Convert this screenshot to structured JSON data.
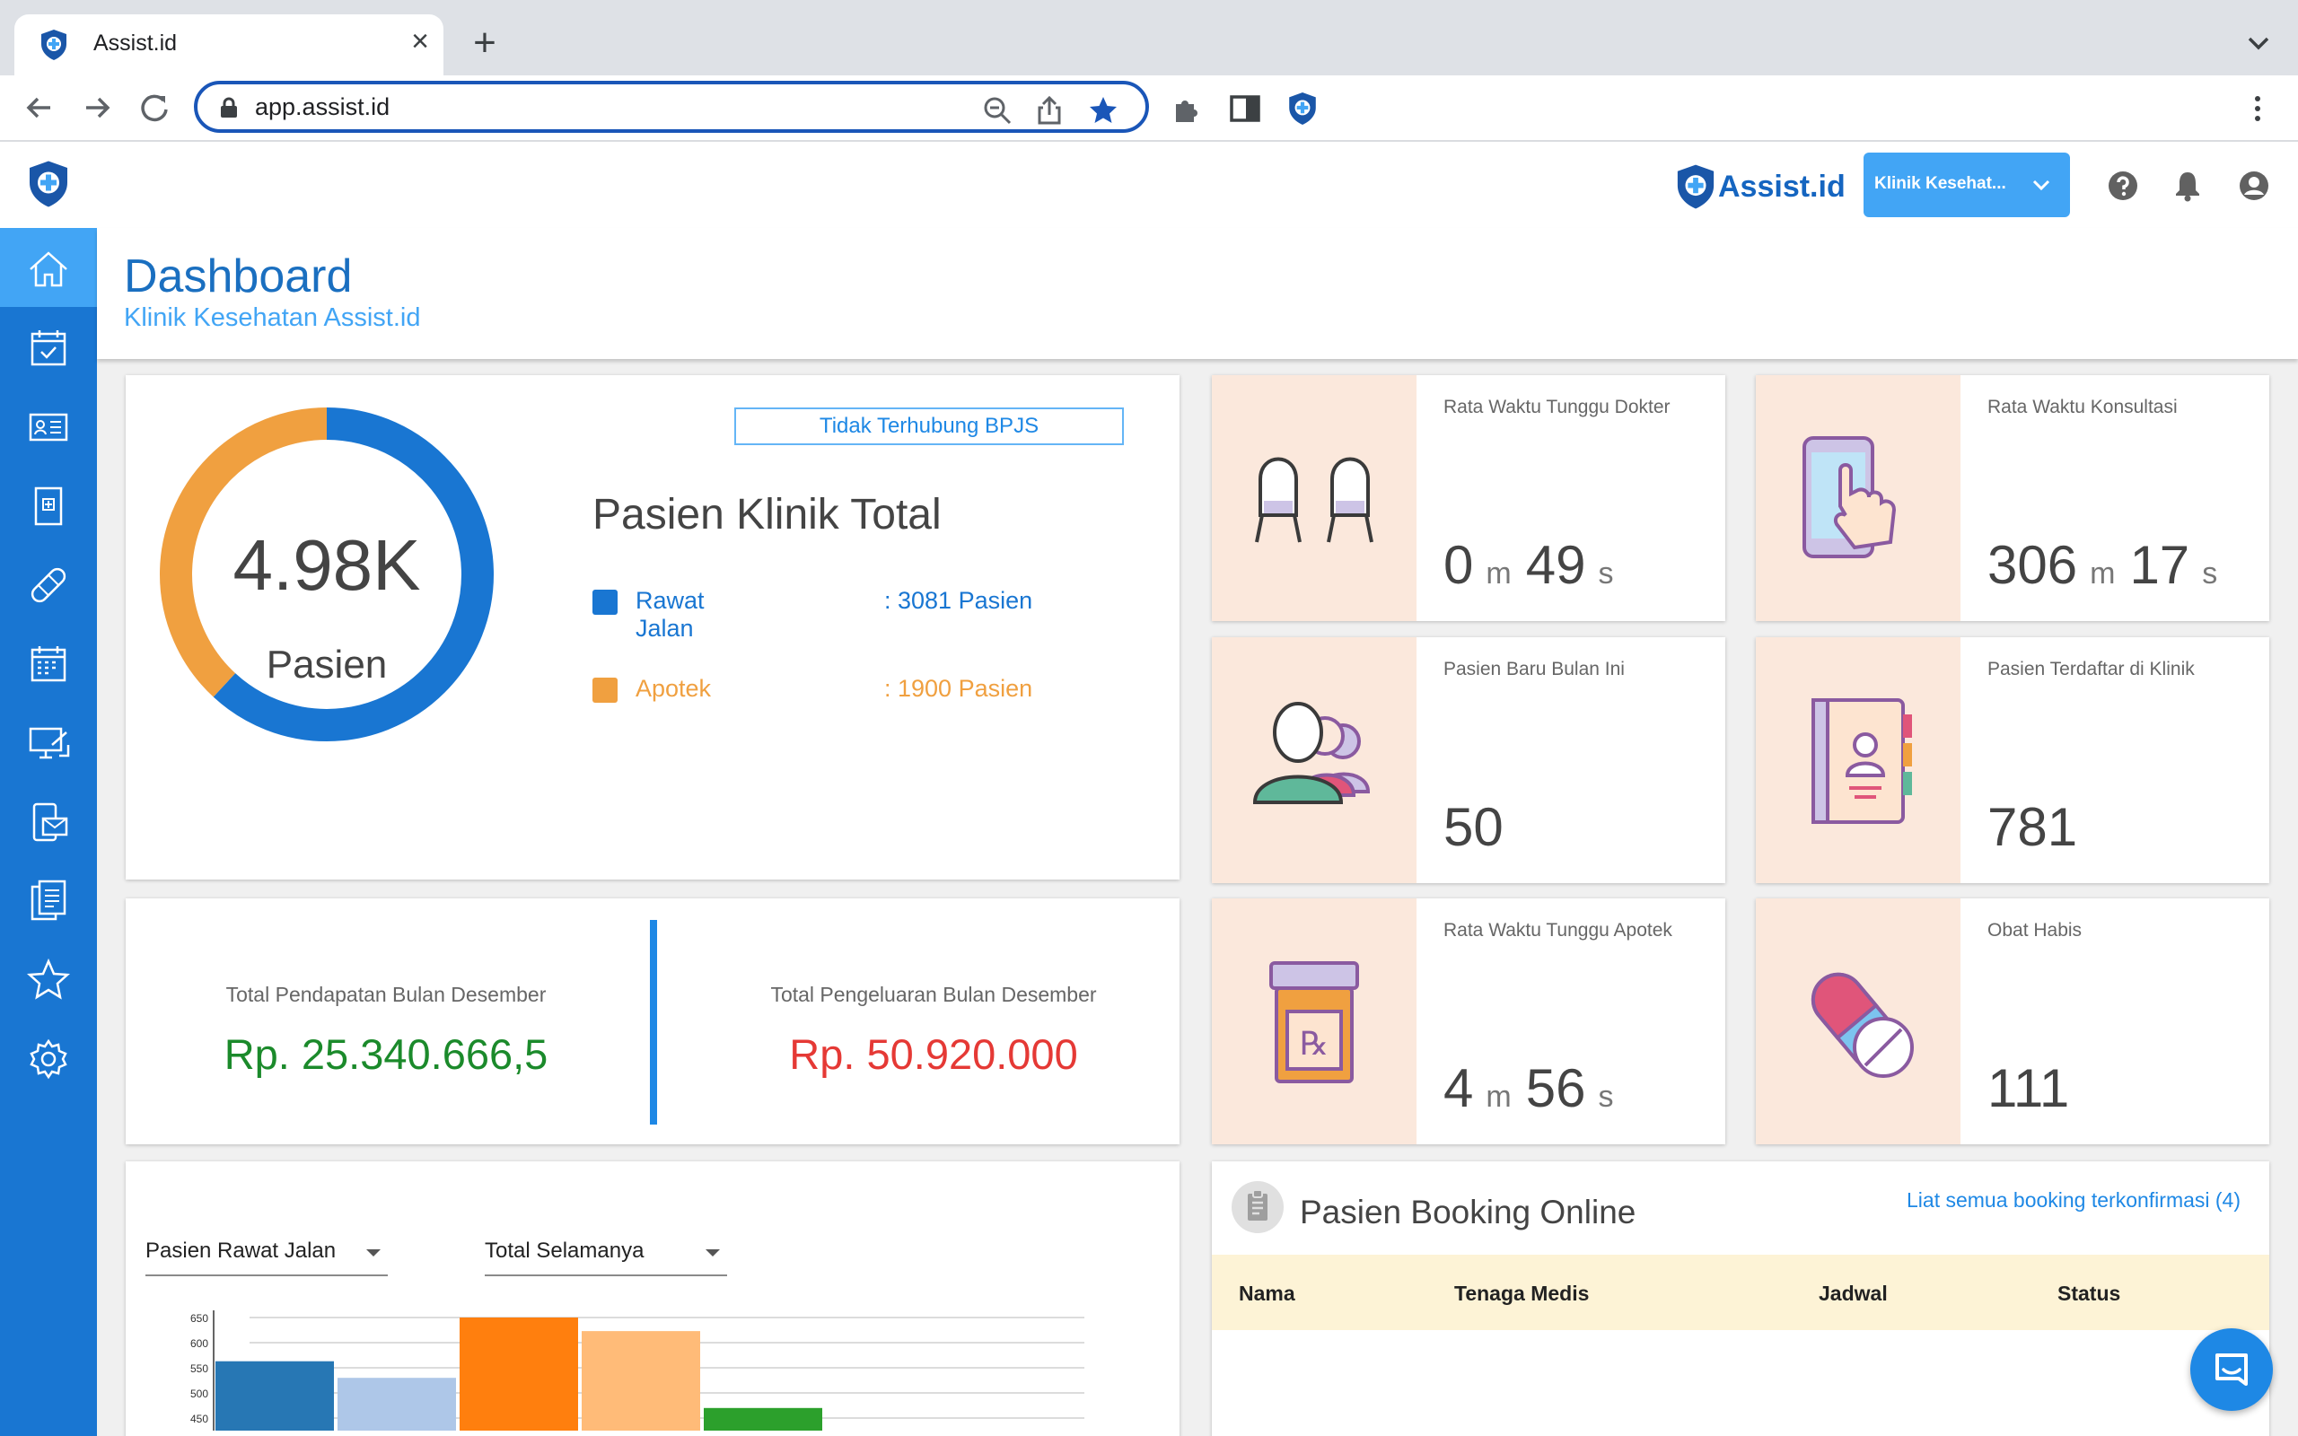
{
  "browser": {
    "tab_title": "Assist.id",
    "url": "app.assist.id"
  },
  "header": {
    "brand": "Assist.id",
    "clinic_selector": "Klinik Kesehat..."
  },
  "sidebar": {
    "items": [
      "home-icon",
      "calendar-check-icon",
      "id-card-icon",
      "medical-record-icon",
      "bandage-icon",
      "schedule-icon",
      "monitor-icon",
      "mail-icon",
      "clipboard-icon",
      "star-icon",
      "settings-icon"
    ]
  },
  "page": {
    "title": "Dashboard",
    "subtitle": "Klinik Kesehatan Assist.id"
  },
  "patients": {
    "bpjs_status": "Tidak Terhubung BPJS",
    "total": "4.98K",
    "unit": "Pasien",
    "title": "Pasien Klinik Total",
    "legend": [
      {
        "name": "Rawat Jalan",
        "value": ": 3081 Pasien",
        "count": 3081,
        "color": "#1976d2"
      },
      {
        "name": "Apotek",
        "value": ": 1900 Pasien",
        "count": 1900,
        "color": "#f0a040"
      }
    ]
  },
  "finance": {
    "income_label": "Total Pendapatan Bulan Desember",
    "income_value": "Rp. 25.340.666,5",
    "expense_label": "Total Pengeluaran Bulan Desember",
    "expense_value": "Rp. 50.920.000"
  },
  "stats": {
    "wait_doctor": {
      "label": "Rata Waktu Tunggu Dokter",
      "m": "0",
      "s": "49",
      "unit_m": "m",
      "unit_s": "s"
    },
    "consult": {
      "label": "Rata Waktu Konsultasi",
      "m": "306",
      "s": "17",
      "unit_m": "m",
      "unit_s": "s"
    },
    "new_patients": {
      "label": "Pasien Baru Bulan Ini",
      "value": "50"
    },
    "registered": {
      "label": "Pasien Terdaftar di Klinik",
      "value": "781"
    },
    "wait_pharmacy": {
      "label": "Rata Waktu Tunggu Apotek",
      "m": "4",
      "s": "56",
      "unit_m": "m",
      "unit_s": "s"
    },
    "out_of_stock": {
      "label": "Obat Habis",
      "value": "111"
    }
  },
  "chart_filters": {
    "type": "Pasien Rawat Jalan",
    "period": "Total Selamanya"
  },
  "chart_data": {
    "type": "bar",
    "yticks": [
      "650",
      "600",
      "550",
      "500",
      "450"
    ],
    "ylim": [
      450,
      650
    ],
    "values": [
      563,
      530,
      650,
      623,
      470
    ],
    "colors": [
      "#2777b4",
      "#aec7e8",
      "#ff7f0e",
      "#ffbb78",
      "#2ca02c"
    ]
  },
  "booking": {
    "title": "Pasien Booking Online",
    "link": "Liat semua booking terkonfirmasi (4)",
    "columns": [
      "Nama",
      "Tenaga Medis",
      "Jadwal",
      "Status"
    ]
  }
}
